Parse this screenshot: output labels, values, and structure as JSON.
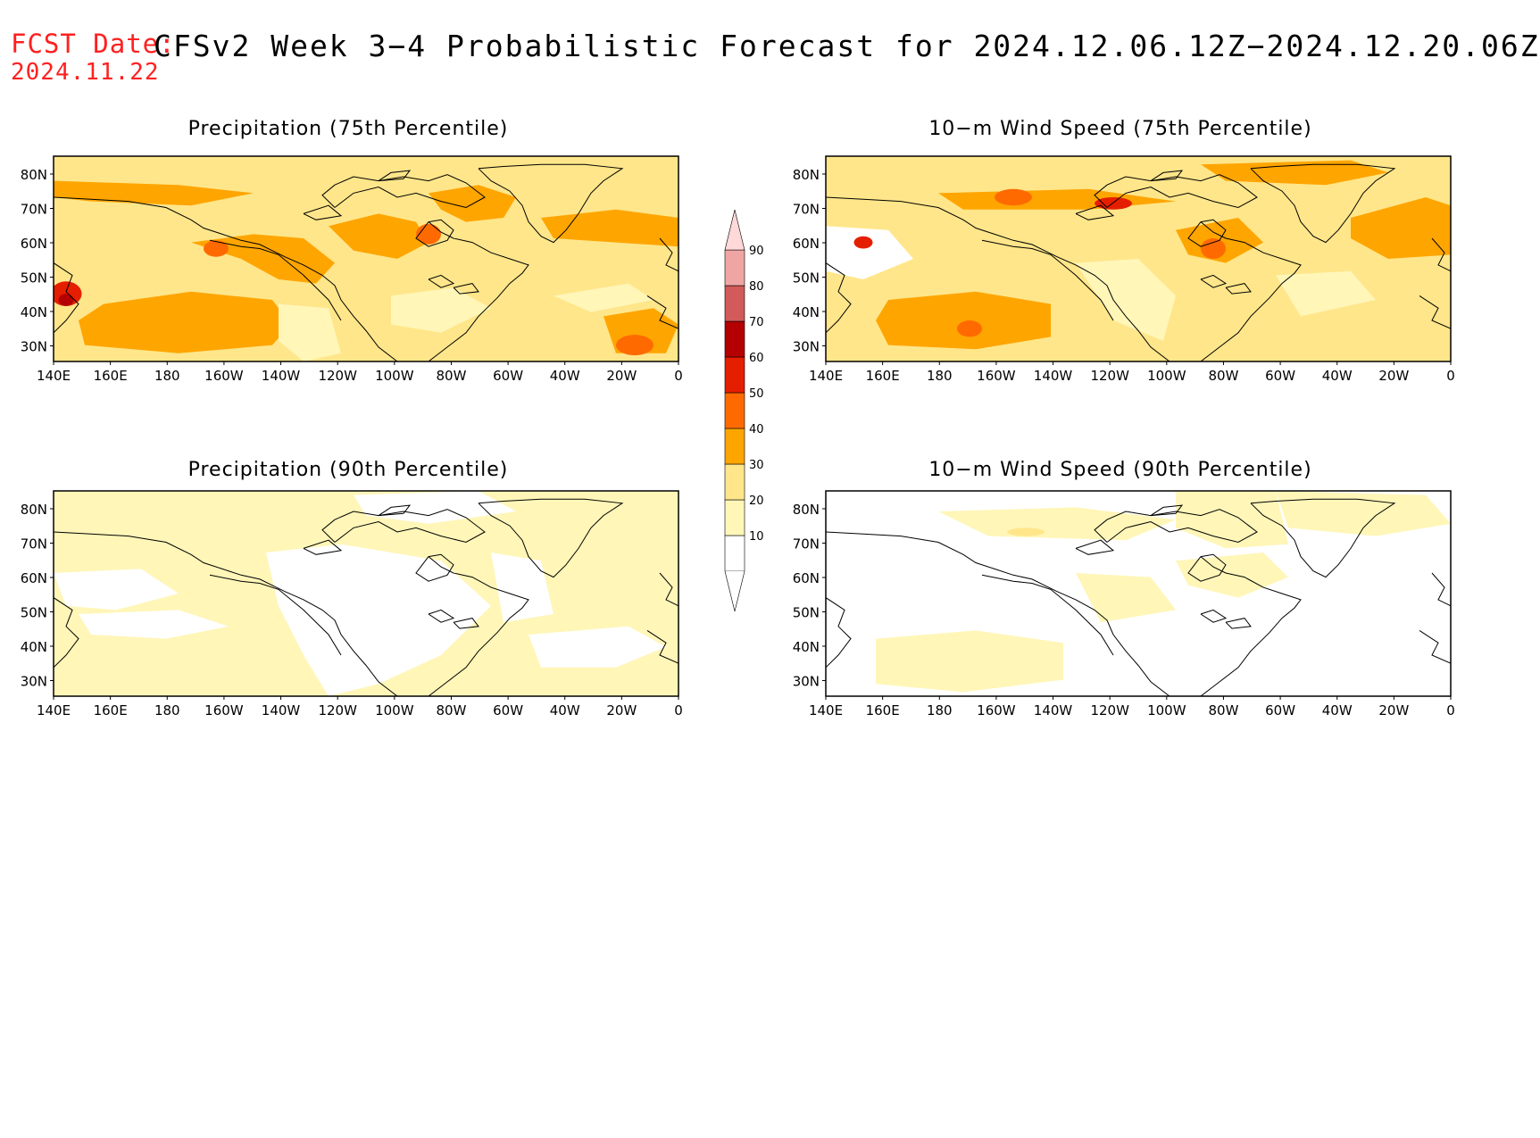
{
  "header": {
    "fcst_label": "FCST Date:",
    "fcst_date": "2024.11.22",
    "title": "CFSv2 Week 3−4 Probabilistic Forecast for 2024.12.06.12Z−2024.12.20.06Z"
  },
  "panels": [
    {
      "id": "precip75",
      "title": "Precipitation (75th Percentile)"
    },
    {
      "id": "wind75",
      "title": "10−m Wind Speed (75th Percentile)"
    },
    {
      "id": "precip90",
      "title": "Precipitation (90th Percentile)"
    },
    {
      "id": "wind90",
      "title": "10−m Wind Speed (90th Percentile)"
    }
  ],
  "axes": {
    "lat_labels": [
      "80N",
      "70N",
      "60N",
      "50N",
      "40N",
      "30N"
    ],
    "lon_labels": [
      "140E",
      "160E",
      "180",
      "160W",
      "140W",
      "120W",
      "100W",
      "80W",
      "60W",
      "40W",
      "20W",
      "0"
    ]
  },
  "colorbar": {
    "levels": [
      "10",
      "20",
      "30",
      "40",
      "50",
      "60",
      "70",
      "80",
      "90"
    ],
    "colors": [
      "#ffffff",
      "#fff6b8",
      "#ffe68a",
      "#ffa500",
      "#ff6a00",
      "#e61e00",
      "#b40000",
      "#d25a5a",
      "#f0a5a5",
      "#ffd8d8"
    ]
  }
}
